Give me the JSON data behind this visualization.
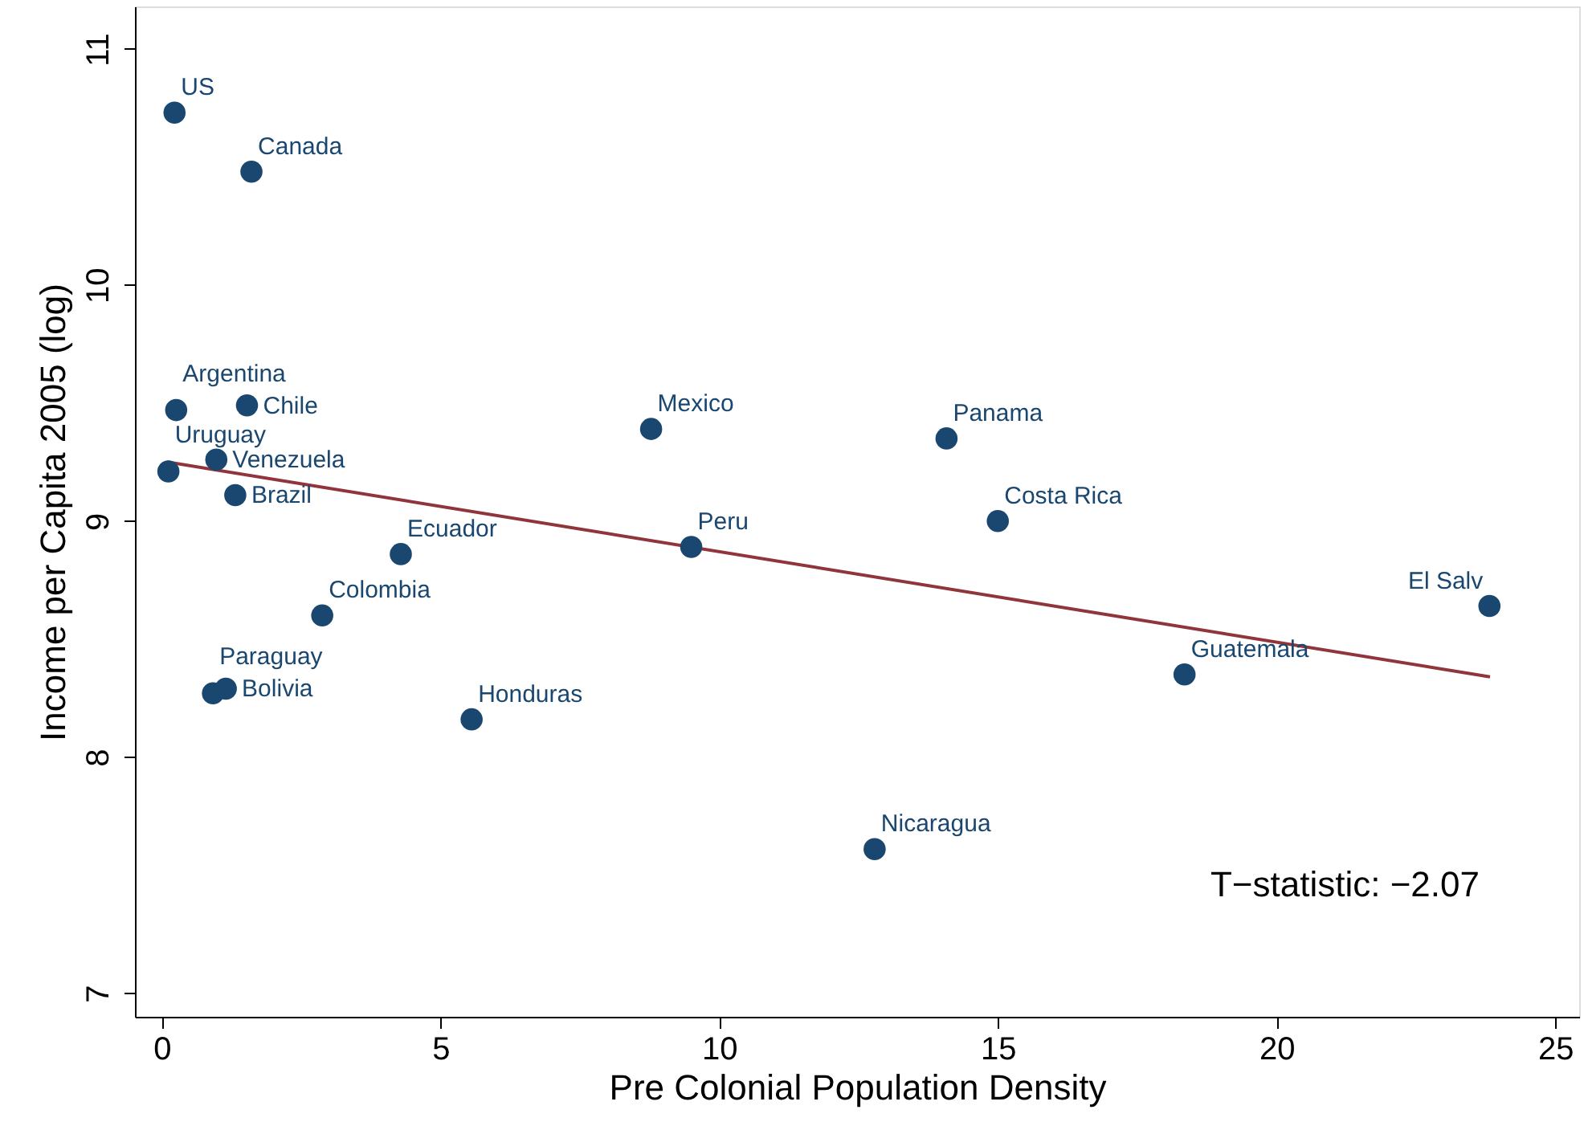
{
  "chart_data": {
    "type": "scatter",
    "xlabel": "Pre Colonial Population Density",
    "ylabel": "Income per Capita 2005 (log)",
    "xlim": [
      -0.48,
      25.43
    ],
    "ylim": [
      6.9,
      11.18
    ],
    "xticks": [
      0,
      5,
      10,
      15,
      20,
      25
    ],
    "yticks": [
      7,
      8,
      9,
      10,
      11
    ],
    "grid": false,
    "marker": "circle",
    "series": [
      {
        "color": "#1a476f",
        "x": [
          0.23,
          1.61,
          0.26,
          1.53,
          0.12,
          0.98,
          1.32,
          4.29,
          2.88,
          0.92,
          1.15,
          5.56,
          8.78,
          9.5,
          12.79,
          14.08,
          15.0,
          18.35,
          23.82
        ],
        "values": [
          10.73,
          10.48,
          9.47,
          9.49,
          9.21,
          9.26,
          9.11,
          8.86,
          8.6,
          8.27,
          8.29,
          8.16,
          9.39,
          8.89,
          7.61,
          9.35,
          9.0,
          8.35,
          8.64
        ]
      },
      {
        "type": "line",
        "marker": "none",
        "color": "#90353b",
        "x": [
          0.1,
          23.83
        ],
        "values": [
          9.25,
          8.34
        ]
      }
    ],
    "annotations": [
      {
        "text": "US",
        "x": 0.23,
        "y": 10.73
      },
      {
        "text": "Canada",
        "x": 1.61,
        "y": 10.48
      },
      {
        "text": "Argentina",
        "x": 0.26,
        "y": 9.47
      },
      {
        "text": "Chile",
        "x": 1.53,
        "y": 9.49
      },
      {
        "text": "Uruguay",
        "x": 0.12,
        "y": 9.21
      },
      {
        "text": "Venezuela",
        "x": 0.98,
        "y": 9.26
      },
      {
        "text": "Brazil",
        "x": 1.32,
        "y": 9.11
      },
      {
        "text": "Ecuador",
        "x": 4.29,
        "y": 8.86
      },
      {
        "text": "Colombia",
        "x": 2.88,
        "y": 8.6
      },
      {
        "text": "Paraguay",
        "x": 0.92,
        "y": 8.27
      },
      {
        "text": "Bolivia",
        "x": 1.15,
        "y": 8.29
      },
      {
        "text": "Honduras",
        "x": 5.56,
        "y": 8.16
      },
      {
        "text": "Mexico",
        "x": 8.78,
        "y": 9.39
      },
      {
        "text": "Peru",
        "x": 9.5,
        "y": 8.89
      },
      {
        "text": "Nicaragua",
        "x": 12.79,
        "y": 7.61
      },
      {
        "text": "Panama",
        "x": 14.08,
        "y": 9.35
      },
      {
        "text": "Costa Rica",
        "x": 15.0,
        "y": 9.0
      },
      {
        "text": "Guatemala",
        "x": 18.35,
        "y": 8.35
      },
      {
        "text": "El Salv",
        "x": 23.82,
        "y": 8.64
      },
      "T−statistic: −2.07"
    ]
  }
}
